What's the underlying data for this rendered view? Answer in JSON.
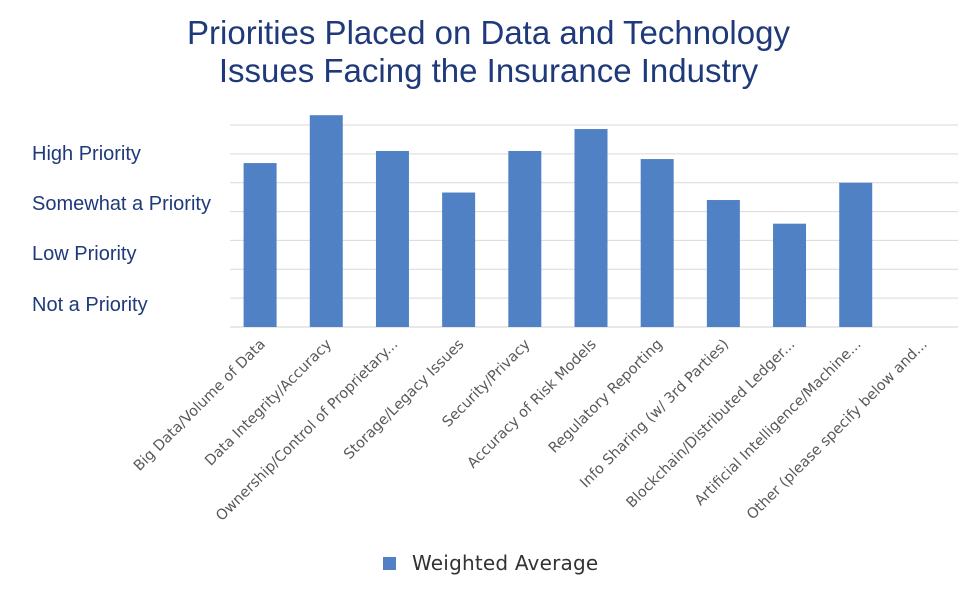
{
  "chart_data": {
    "type": "bar",
    "title": "Priorities Placed on Data and Technology Issues Facing the Insurance Industry",
    "title_lines": [
      "Priorities Placed on Data and Technology",
      "Issues Facing the Insurance Industry"
    ],
    "categories": [
      "Big Data/Volume of Data",
      "Data Integrity/Accuracy",
      "Ownership/Control of Proprietary...",
      "Storage/Legacy Issues",
      "Security/Privacy",
      "Accuracy of Risk Models",
      "Regulatory Reporting",
      "Info Sharing (w/ 3rd Parties)",
      "Blockchain/Distributed Ledger...",
      "Artificial Intelligence/Machine...",
      "Other (please specify below and..."
    ],
    "series": [
      {
        "name": "Weighted Average",
        "values": [
          2.84,
          3.67,
          3.05,
          2.33,
          3.05,
          3.43,
          2.91,
          2.2,
          1.79,
          2.5,
          0
        ]
      }
    ],
    "ylim": [
      0,
      3.5
    ],
    "y_category_labels": [
      "High Priority",
      "Somewhat a Priority",
      "Low Priority",
      "Not a Priority"
    ],
    "grid": true,
    "legend_position": "bottom",
    "colors": {
      "bar": "#4f81c4",
      "grid": "#d9d9d9",
      "title": "#1f3a7a",
      "tick": "#595959"
    }
  }
}
